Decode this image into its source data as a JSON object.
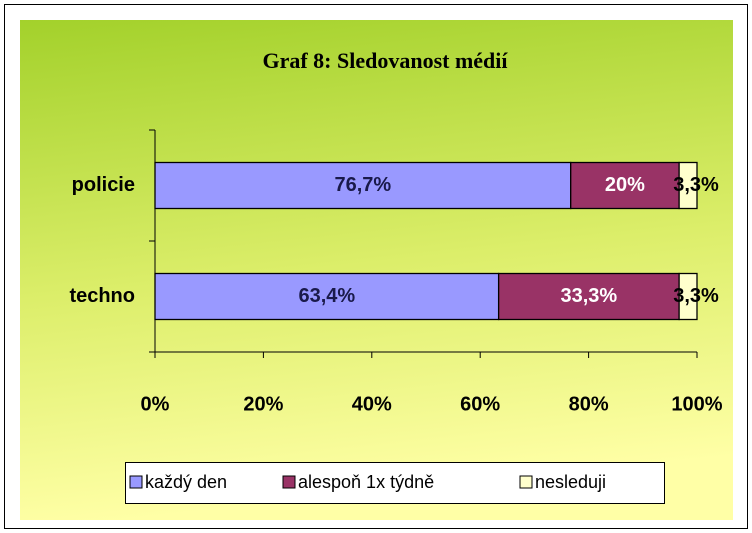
{
  "chart_data": {
    "type": "stacked-barh",
    "title": "Graf 8: Sledovanost médií",
    "categories": [
      "policie",
      "techno"
    ],
    "series": [
      {
        "name": "každý den",
        "color": "#9999ff",
        "label_color": "#1a1a4a",
        "values": [
          76.7,
          63.4
        ],
        "value_labels": [
          "76,7%",
          "63,4%"
        ]
      },
      {
        "name": "alespoň 1x týdně",
        "color": "#993366",
        "label_color": "#ffffff",
        "values": [
          20,
          33.3
        ],
        "value_labels": [
          "20%",
          "33,3%"
        ]
      },
      {
        "name": "nesleduji",
        "color": "#ffffcc",
        "label_color": "#000000",
        "values": [
          3.3,
          3.3
        ],
        "value_labels": [
          "3,3%",
          "3,3%"
        ]
      }
    ],
    "xlim": [
      0,
      100
    ],
    "xticks": [
      {
        "value": 0,
        "label": "0%"
      },
      {
        "value": 20,
        "label": "20%"
      },
      {
        "value": 40,
        "label": "40%"
      },
      {
        "value": 60,
        "label": "60%"
      },
      {
        "value": 80,
        "label": "80%"
      },
      {
        "value": 100,
        "label": "100%"
      }
    ],
    "legend": "bottom"
  }
}
